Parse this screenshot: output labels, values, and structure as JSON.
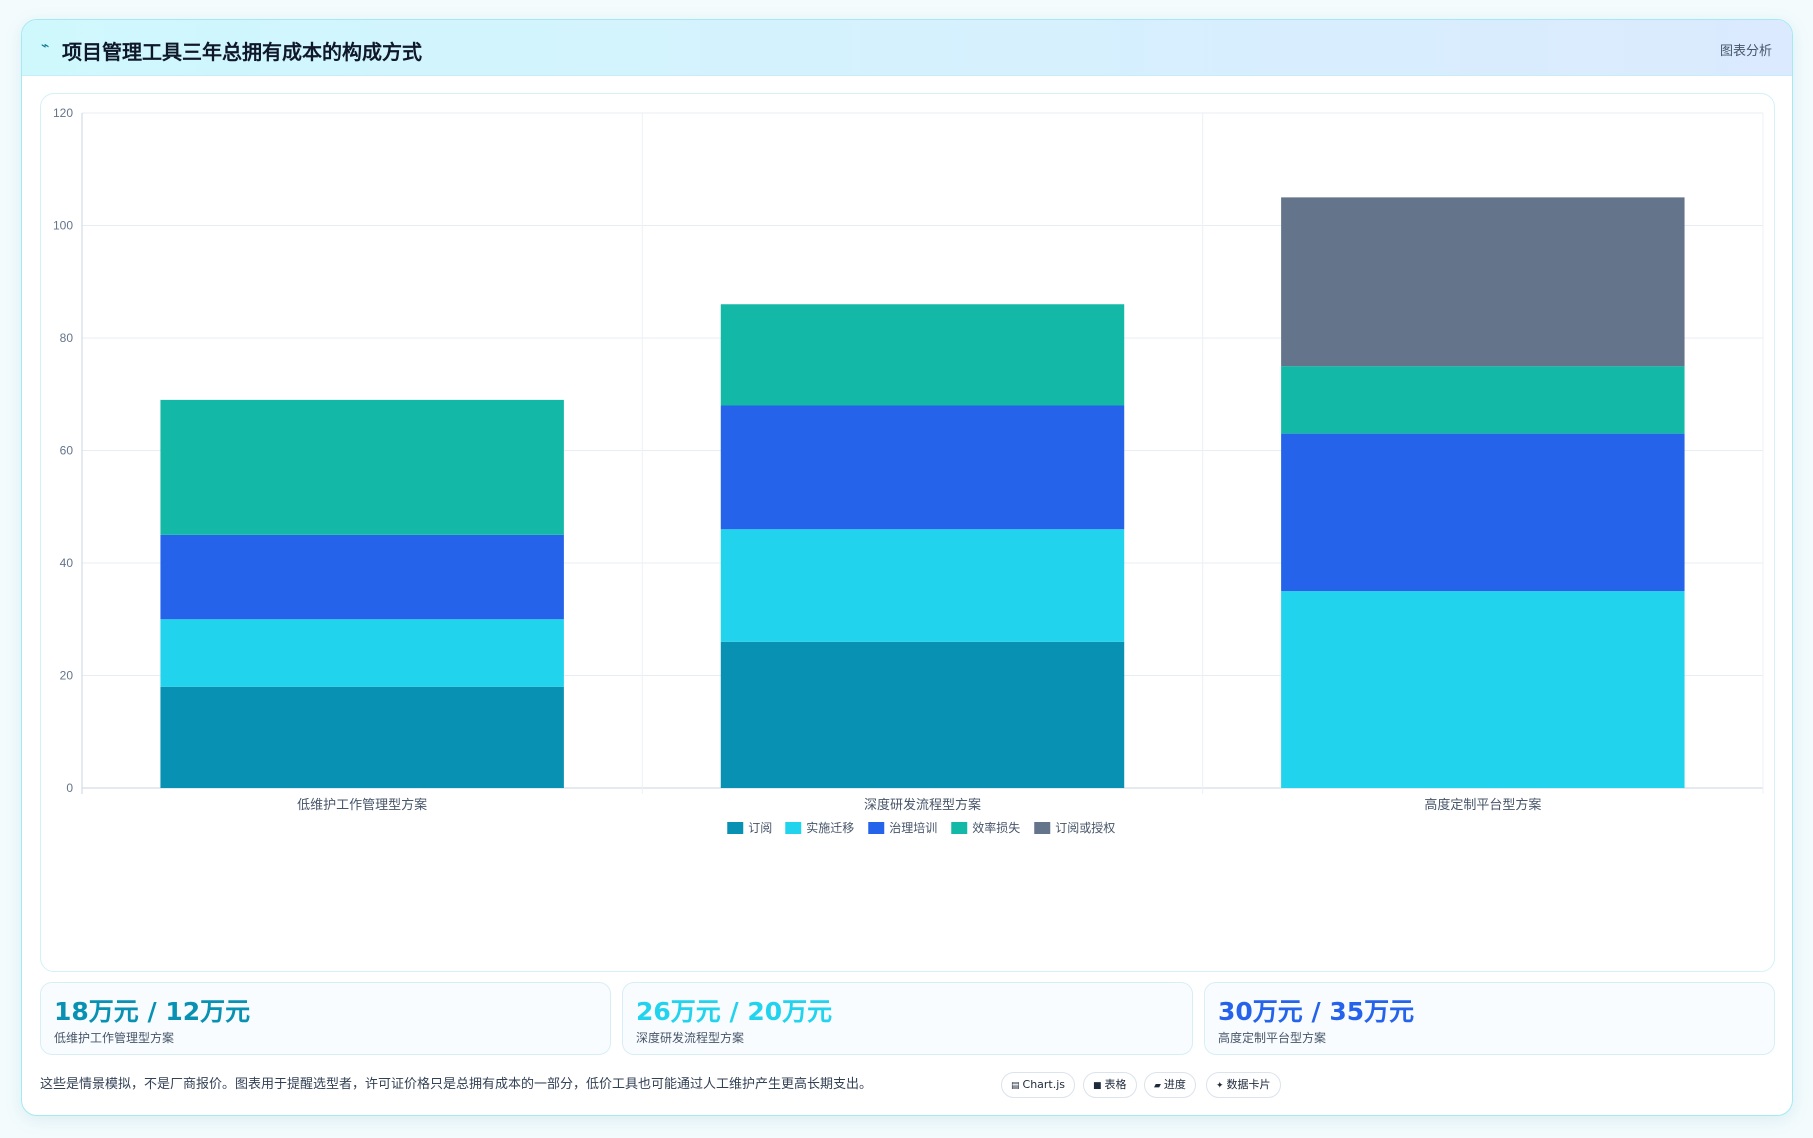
{
  "header": {
    "title": "项目管理工具三年总拥有成本的构成方式",
    "tag": "图表分析"
  },
  "chart_data": {
    "type": "bar",
    "stacked": true,
    "categories": [
      "低维护工作管理型方案",
      "深度研发流程型方案",
      "高度定制平台型方案"
    ],
    "series": [
      {
        "name": "订阅",
        "color": "#0891b2",
        "values": [
          18,
          26,
          0
        ]
      },
      {
        "name": "实施迁移",
        "color": "#22d3ee",
        "values": [
          12,
          20,
          35
        ]
      },
      {
        "name": "治理培训",
        "color": "#2563eb",
        "values": [
          15,
          22,
          28
        ]
      },
      {
        "name": "效率损失",
        "color": "#14b8a6",
        "values": [
          24,
          18,
          12
        ]
      },
      {
        "name": "订阅或授权",
        "color": "#64748b",
        "values": [
          0,
          0,
          30
        ]
      }
    ],
    "ylim": [
      0,
      120
    ],
    "yticks": [
      0,
      20,
      40,
      60,
      80,
      100,
      120
    ],
    "grid": true,
    "legend": "bottom"
  },
  "stats": [
    {
      "value": "18万元 / 12万元",
      "label": "低维护工作管理型方案",
      "color": "#0891b2"
    },
    {
      "value": "26万元 / 20万元",
      "label": "深度研发流程型方案",
      "color": "#22d3ee"
    },
    {
      "value": "30万元 / 35万元",
      "label": "高度定制平台型方案",
      "color": "#2563eb"
    }
  ],
  "footer": {
    "note": "这些是情景模拟，不是厂商报价。图表用于提醒选型者，许可证价格只是总拥有成本的一部分，低价工具也可能通过人工维护产生更高长期支出。",
    "pills": [
      {
        "icon": "▤",
        "label": "Chart.js"
      },
      {
        "icon": "■",
        "label": "表格"
      },
      {
        "icon": "▰",
        "label": "进度"
      },
      {
        "icon": "✦",
        "label": "数据卡片"
      }
    ]
  }
}
